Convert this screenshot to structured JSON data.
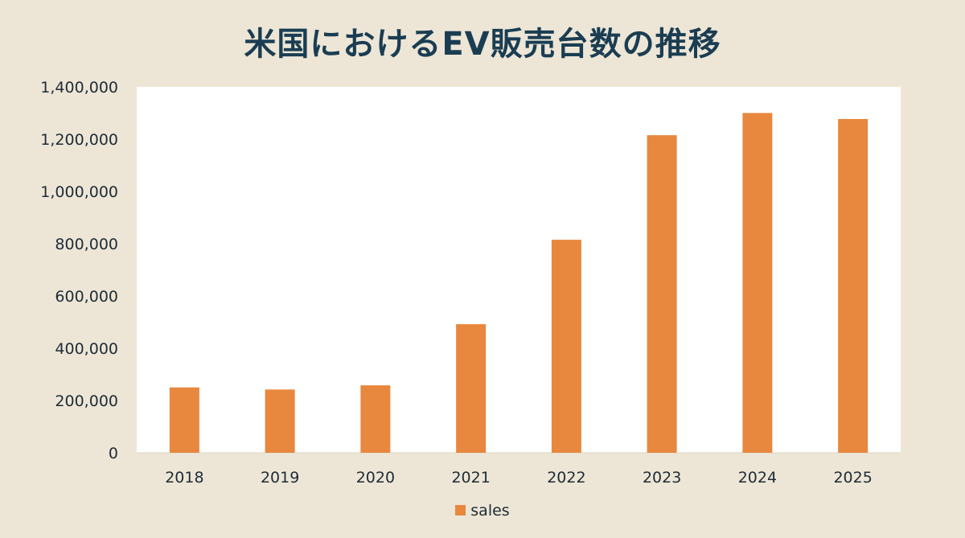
{
  "chart_data": {
    "type": "bar",
    "title": "米国におけるEV販売台数の推移",
    "categories": [
      "2018",
      "2019",
      "2020",
      "2021",
      "2022",
      "2023",
      "2024",
      "2025"
    ],
    "series": [
      {
        "name": "sales",
        "values": [
          250000,
          242000,
          258000,
          492000,
          815000,
          1215000,
          1300000,
          1277000
        ]
      }
    ],
    "ylim": [
      0,
      1400000
    ],
    "yticks": [
      0,
      200000,
      400000,
      600000,
      800000,
      1000000,
      1200000,
      1400000
    ],
    "ytick_labels": [
      "0",
      "200,000",
      "400,000",
      "600,000",
      "800,000",
      "1,000,000",
      "1,200,000",
      "1,400,000"
    ],
    "xlabel": "",
    "ylabel": "",
    "grid": false,
    "legend_position": "bottom-center",
    "colors": {
      "bar": "#e8873e",
      "plot_background": "#ffffff",
      "page_background": "#ede6d6",
      "title": "#1a3d52"
    }
  }
}
